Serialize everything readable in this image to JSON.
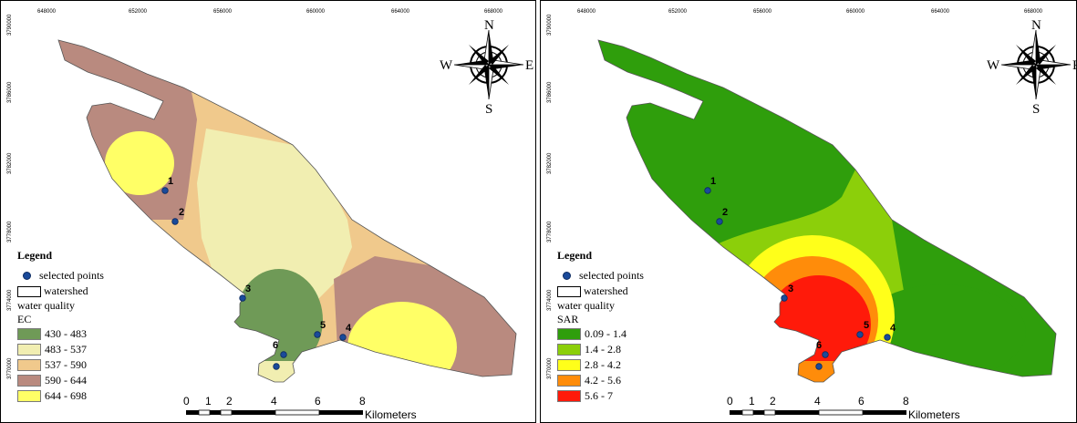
{
  "colors": {
    "ec": [
      "#6f9a57",
      "#f1eeb1",
      "#f0c98c",
      "#b98a7f",
      "#ffff66"
    ],
    "sar": [
      "#2f9e0c",
      "#8ccf0a",
      "#ffff1a",
      "#ff8c0a",
      "#ff1a0a"
    ],
    "point_fill": "#1a4a9a"
  },
  "axis_ticks": {
    "top": [
      "648000",
      "652000",
      "656000",
      "660000",
      "664000",
      "668000"
    ],
    "left": [
      "3790000",
      "3786000",
      "3782000",
      "3778000",
      "3774000",
      "3770000"
    ]
  },
  "compass": {
    "n": "N",
    "s": "S",
    "e": "E",
    "w": "W"
  },
  "points": [
    {
      "label": "1"
    },
    {
      "label": "2"
    },
    {
      "label": "3"
    },
    {
      "label": "4"
    },
    {
      "label": "5"
    },
    {
      "label": "6"
    }
  ],
  "scalebar": {
    "numbers": [
      "0",
      "1",
      "2",
      "4",
      "6",
      "8"
    ],
    "unit": "Kilometers"
  },
  "maps": [
    {
      "legend": {
        "title": "Legend",
        "selected_points": "selected points",
        "watershed": "watershed",
        "water_quality": "water quality",
        "parameter": "EC",
        "classes": [
          "430 - 483",
          "483 - 537",
          "537 - 590",
          "590 - 644",
          "644 - 698"
        ]
      }
    },
    {
      "legend": {
        "title": "Legend",
        "selected_points": "selected points",
        "watershed": "watershed",
        "water_quality": "water quality",
        "parameter": "SAR",
        "classes": [
          "0.09 - 1.4",
          "1.4 - 2.8",
          "2.8 - 4.2",
          "4.2 - 5.6",
          "5.6 - 7"
        ]
      }
    }
  ]
}
